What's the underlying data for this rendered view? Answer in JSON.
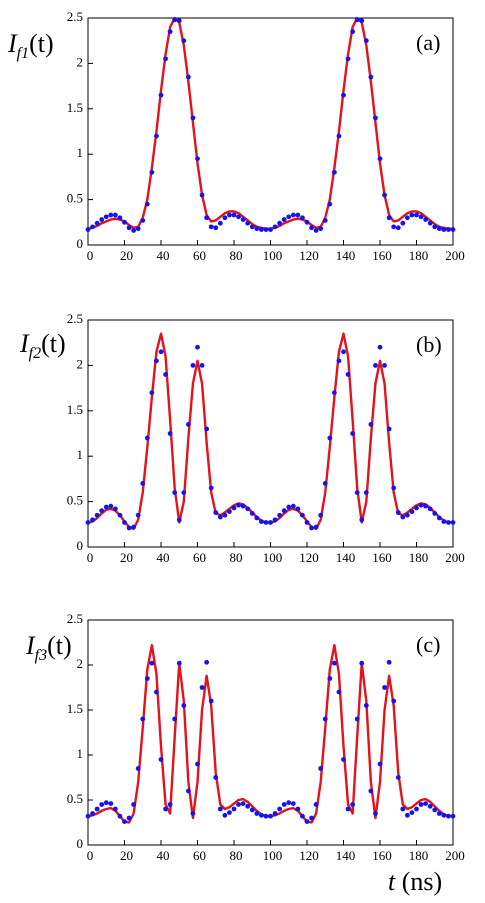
{
  "chart_data": [
    {
      "type": "line",
      "panel_label": "(a)",
      "ylabel": [
        "I",
        "f1",
        "(t)"
      ],
      "xlim": [
        0,
        200
      ],
      "ylim": [
        0,
        2.5
      ],
      "xticks": [
        0,
        20,
        40,
        60,
        80,
        100,
        120,
        140,
        160,
        180,
        200
      ],
      "yticks": [
        0,
        0.5,
        1,
        1.5,
        2,
        2.5
      ],
      "x": [
        0,
        2.5,
        5,
        7.5,
        10,
        12.5,
        15,
        17.5,
        20,
        22.5,
        25,
        27.5,
        30,
        32.5,
        35,
        37.5,
        40,
        42.5,
        45,
        47.5,
        50,
        52.5,
        55,
        57.5,
        60,
        62.5,
        65,
        67.5,
        70,
        72.5,
        75,
        77.5,
        80,
        82.5,
        85,
        87.5,
        90,
        92.5,
        95,
        97.5,
        100,
        102.5,
        105,
        107.5,
        110,
        112.5,
        115,
        117.5,
        120,
        122.5,
        125,
        127.5,
        130,
        132.5,
        135,
        137.5,
        140,
        142.5,
        145,
        147.5,
        150,
        152.5,
        155,
        157.5,
        160,
        162.5,
        165,
        167.5,
        170,
        172.5,
        175,
        177.5,
        180,
        182.5,
        185,
        187.5,
        190,
        192.5,
        195,
        197.5,
        200
      ],
      "series": [
        {
          "style": "line",
          "color": "#e3121b",
          "values": [
            0.18,
            0.19,
            0.21,
            0.24,
            0.26,
            0.28,
            0.29,
            0.28,
            0.26,
            0.22,
            0.19,
            0.2,
            0.3,
            0.5,
            0.85,
            1.25,
            1.7,
            2.1,
            2.4,
            2.5,
            2.45,
            2.2,
            1.8,
            1.35,
            0.9,
            0.55,
            0.33,
            0.26,
            0.27,
            0.31,
            0.35,
            0.37,
            0.37,
            0.35,
            0.31,
            0.27,
            0.23,
            0.2,
            0.19,
            0.18,
            0.18,
            0.19,
            0.21,
            0.24,
            0.26,
            0.28,
            0.29,
            0.28,
            0.26,
            0.22,
            0.19,
            0.2,
            0.3,
            0.5,
            0.85,
            1.25,
            1.7,
            2.1,
            2.4,
            2.5,
            2.45,
            2.2,
            1.8,
            1.35,
            0.9,
            0.55,
            0.33,
            0.26,
            0.27,
            0.31,
            0.35,
            0.37,
            0.37,
            0.35,
            0.31,
            0.27,
            0.23,
            0.2,
            0.19,
            0.18,
            0.18
          ]
        },
        {
          "style": "dots",
          "color": "#1414f0",
          "values": [
            0.17,
            0.2,
            0.24,
            0.28,
            0.31,
            0.33,
            0.33,
            0.3,
            0.25,
            0.19,
            0.16,
            0.18,
            0.27,
            0.45,
            0.8,
            1.2,
            1.65,
            2.05,
            2.35,
            2.48,
            2.47,
            2.25,
            1.85,
            1.4,
            0.95,
            0.55,
            0.3,
            0.2,
            0.19,
            0.24,
            0.3,
            0.33,
            0.33,
            0.31,
            0.28,
            0.24,
            0.2,
            0.18,
            0.17,
            0.17,
            0.17,
            0.2,
            0.24,
            0.28,
            0.31,
            0.33,
            0.33,
            0.3,
            0.25,
            0.19,
            0.16,
            0.18,
            0.27,
            0.45,
            0.8,
            1.2,
            1.65,
            2.05,
            2.35,
            2.48,
            2.47,
            2.25,
            1.85,
            1.4,
            0.95,
            0.55,
            0.3,
            0.2,
            0.19,
            0.24,
            0.3,
            0.33,
            0.33,
            0.31,
            0.28,
            0.24,
            0.2,
            0.18,
            0.17,
            0.17,
            0.17
          ]
        }
      ]
    },
    {
      "type": "line",
      "panel_label": "(b)",
      "ylabel": [
        "I",
        "f2",
        "(t)"
      ],
      "xlim": [
        0,
        200
      ],
      "ylim": [
        0,
        2.5
      ],
      "xticks": [
        0,
        20,
        40,
        60,
        80,
        100,
        120,
        140,
        160,
        180,
        200
      ],
      "yticks": [
        0,
        0.5,
        1,
        1.5,
        2,
        2.5
      ],
      "x": [
        0,
        2.5,
        5,
        7.5,
        10,
        12.5,
        15,
        17.5,
        20,
        22.5,
        25,
        27.5,
        30,
        32.5,
        35,
        37.5,
        40,
        42.5,
        45,
        47.5,
        50,
        52.5,
        55,
        57.5,
        60,
        62.5,
        65,
        67.5,
        70,
        72.5,
        75,
        77.5,
        80,
        82.5,
        85,
        87.5,
        90,
        92.5,
        95,
        97.5,
        100,
        102.5,
        105,
        107.5,
        110,
        112.5,
        115,
        117.5,
        120,
        122.5,
        125,
        127.5,
        130,
        132.5,
        135,
        137.5,
        140,
        142.5,
        145,
        147.5,
        150,
        152.5,
        155,
        157.5,
        160,
        162.5,
        165,
        167.5,
        170,
        172.5,
        175,
        177.5,
        180,
        182.5,
        185,
        187.5,
        190,
        192.5,
        195,
        197.5,
        200
      ],
      "series": [
        {
          "style": "line",
          "color": "#e3121b",
          "values": [
            0.27,
            0.28,
            0.32,
            0.37,
            0.41,
            0.42,
            0.4,
            0.35,
            0.28,
            0.22,
            0.2,
            0.3,
            0.6,
            1.1,
            1.65,
            2.15,
            2.35,
            2.1,
            1.4,
            0.65,
            0.27,
            0.5,
            1.2,
            1.8,
            2.05,
            1.8,
            1.15,
            0.6,
            0.37,
            0.35,
            0.38,
            0.42,
            0.46,
            0.48,
            0.47,
            0.43,
            0.38,
            0.33,
            0.29,
            0.27,
            0.27,
            0.28,
            0.32,
            0.37,
            0.41,
            0.42,
            0.4,
            0.35,
            0.28,
            0.22,
            0.2,
            0.3,
            0.6,
            1.1,
            1.65,
            2.15,
            2.35,
            2.1,
            1.4,
            0.65,
            0.27,
            0.5,
            1.2,
            1.8,
            2.05,
            1.8,
            1.15,
            0.6,
            0.37,
            0.35,
            0.38,
            0.42,
            0.46,
            0.48,
            0.47,
            0.43,
            0.38,
            0.33,
            0.29,
            0.27,
            0.27
          ]
        },
        {
          "style": "dots",
          "color": "#1414f0",
          "values": [
            0.27,
            0.3,
            0.35,
            0.4,
            0.44,
            0.45,
            0.42,
            0.35,
            0.27,
            0.21,
            0.22,
            0.35,
            0.7,
            1.2,
            1.7,
            2.05,
            2.15,
            1.9,
            1.25,
            0.6,
            0.3,
            0.6,
            1.35,
            2.0,
            2.2,
            2.0,
            1.3,
            0.65,
            0.38,
            0.33,
            0.35,
            0.39,
            0.43,
            0.46,
            0.45,
            0.42,
            0.37,
            0.32,
            0.28,
            0.27,
            0.27,
            0.3,
            0.35,
            0.4,
            0.44,
            0.45,
            0.42,
            0.35,
            0.27,
            0.21,
            0.22,
            0.35,
            0.7,
            1.2,
            1.7,
            2.05,
            2.15,
            1.9,
            1.25,
            0.6,
            0.3,
            0.6,
            1.35,
            2.0,
            2.2,
            2.0,
            1.3,
            0.65,
            0.38,
            0.33,
            0.35,
            0.39,
            0.43,
            0.46,
            0.45,
            0.42,
            0.37,
            0.32,
            0.28,
            0.27,
            0.27
          ]
        }
      ]
    },
    {
      "type": "line",
      "panel_label": "(c)",
      "ylabel": [
        "I",
        "f3",
        "(t)"
      ],
      "xlabel": [
        "t",
        " (ns)"
      ],
      "xlim": [
        0,
        200
      ],
      "ylim": [
        0,
        2.5
      ],
      "xticks": [
        0,
        20,
        40,
        60,
        80,
        100,
        120,
        140,
        160,
        180,
        200
      ],
      "yticks": [
        0,
        0.5,
        1,
        1.5,
        2,
        2.5
      ],
      "x": [
        0,
        2.5,
        5,
        7.5,
        10,
        12.5,
        15,
        17.5,
        20,
        22.5,
        25,
        27.5,
        30,
        32.5,
        35,
        37.5,
        40,
        42.5,
        45,
        47.5,
        50,
        52.5,
        55,
        57.5,
        60,
        62.5,
        65,
        67.5,
        70,
        72.5,
        75,
        77.5,
        80,
        82.5,
        85,
        87.5,
        90,
        92.5,
        95,
        97.5,
        100,
        102.5,
        105,
        107.5,
        110,
        112.5,
        115,
        117.5,
        120,
        122.5,
        125,
        127.5,
        130,
        132.5,
        135,
        137.5,
        140,
        142.5,
        145,
        147.5,
        150,
        152.5,
        155,
        157.5,
        160,
        162.5,
        165,
        167.5,
        170,
        172.5,
        175,
        177.5,
        180,
        182.5,
        185,
        187.5,
        190,
        192.5,
        195,
        197.5,
        200
      ],
      "series": [
        {
          "style": "line",
          "color": "#e3121b",
          "values": [
            0.32,
            0.33,
            0.35,
            0.38,
            0.4,
            0.41,
            0.38,
            0.32,
            0.26,
            0.25,
            0.35,
            0.7,
            1.3,
            1.95,
            2.22,
            1.9,
            1.1,
            0.45,
            0.35,
            1.2,
            2.02,
            1.6,
            0.7,
            0.3,
            0.7,
            1.5,
            1.88,
            1.55,
            0.8,
            0.45,
            0.4,
            0.42,
            0.46,
            0.5,
            0.51,
            0.48,
            0.43,
            0.38,
            0.34,
            0.32,
            0.32,
            0.33,
            0.35,
            0.38,
            0.4,
            0.41,
            0.38,
            0.32,
            0.26,
            0.25,
            0.35,
            0.7,
            1.3,
            1.95,
            2.22,
            1.9,
            1.1,
            0.45,
            0.35,
            1.2,
            2.02,
            1.6,
            0.7,
            0.3,
            0.7,
            1.5,
            1.88,
            1.55,
            0.8,
            0.45,
            0.4,
            0.42,
            0.46,
            0.5,
            0.51,
            0.48,
            0.43,
            0.38,
            0.34,
            0.32,
            0.32
          ]
        },
        {
          "style": "dots",
          "color": "#1414f0",
          "values": [
            0.32,
            0.35,
            0.4,
            0.45,
            0.47,
            0.46,
            0.4,
            0.32,
            0.26,
            0.3,
            0.45,
            0.85,
            1.4,
            1.85,
            2.02,
            1.7,
            0.95,
            0.4,
            0.45,
            1.4,
            2.02,
            1.55,
            0.6,
            0.35,
            0.9,
            1.75,
            2.03,
            1.6,
            0.75,
            0.4,
            0.33,
            0.36,
            0.4,
            0.45,
            0.46,
            0.43,
            0.39,
            0.35,
            0.33,
            0.32,
            0.32,
            0.35,
            0.4,
            0.45,
            0.47,
            0.46,
            0.4,
            0.32,
            0.26,
            0.3,
            0.45,
            0.85,
            1.4,
            1.85,
            2.02,
            1.7,
            0.95,
            0.4,
            0.45,
            1.4,
            2.02,
            1.55,
            0.6,
            0.35,
            0.9,
            1.75,
            2.03,
            1.6,
            0.75,
            0.4,
            0.33,
            0.36,
            0.4,
            0.45,
            0.46,
            0.43,
            0.39,
            0.35,
            0.33,
            0.32,
            0.32
          ]
        }
      ]
    }
  ]
}
